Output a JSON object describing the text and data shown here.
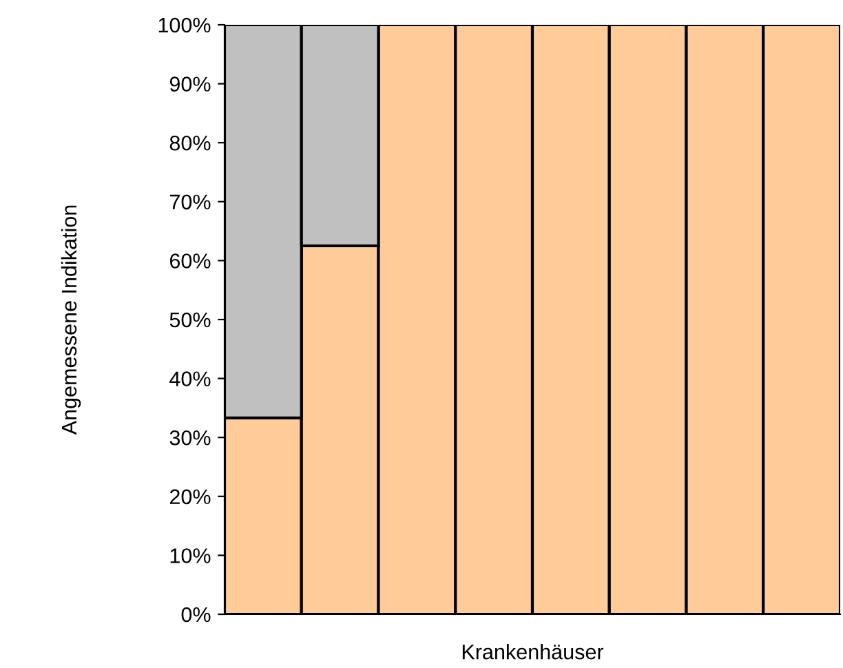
{
  "chart_data": {
    "type": "bar",
    "stacked": true,
    "xlabel": "Krankenhäuser",
    "ylabel": "Angemessene Indikation",
    "categories": [
      null,
      null,
      null,
      null,
      null,
      null,
      null,
      null
    ],
    "series": [
      {
        "color": "#ffcc99",
        "values": [
          33.3,
          62.5,
          100,
          100,
          100,
          100,
          100,
          100
        ]
      },
      {
        "color": "#c0c0c0",
        "values": [
          66.7,
          37.5,
          null,
          null,
          null,
          null,
          null,
          null
        ]
      }
    ],
    "ylim": [
      0,
      100
    ],
    "yticks": [
      {
        "value": 0,
        "label": "0%"
      },
      {
        "value": 10,
        "label": "10%"
      },
      {
        "value": 20,
        "label": "20%"
      },
      {
        "value": 30,
        "label": "30%"
      },
      {
        "value": 40,
        "label": "40%"
      },
      {
        "value": 50,
        "label": "50%"
      },
      {
        "value": 60,
        "label": "60%"
      },
      {
        "value": 70,
        "label": "70%"
      },
      {
        "value": 80,
        "label": "80%"
      },
      {
        "value": 90,
        "label": "90%"
      },
      {
        "value": 100,
        "label": "100%"
      }
    ],
    "grid": false,
    "legend": false
  }
}
